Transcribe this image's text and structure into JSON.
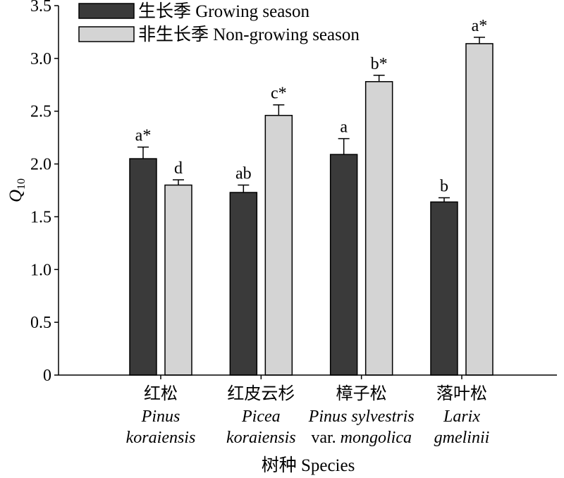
{
  "chart_data": {
    "type": "bar",
    "categories": [
      {
        "cn": "红松",
        "line2": [
          {
            "text": "Pinus",
            "italic": true
          }
        ],
        "line3": [
          {
            "text": "koraiensis",
            "italic": true
          }
        ]
      },
      {
        "cn": "红皮云杉",
        "line2": [
          {
            "text": "Picea",
            "italic": true
          }
        ],
        "line3": [
          {
            "text": "koraiensis",
            "italic": true
          }
        ]
      },
      {
        "cn": "樟子松",
        "line2": [
          {
            "text": "Pinus sylvestris",
            "italic": true
          }
        ],
        "line3": [
          {
            "text": "var.",
            "italic": false
          },
          {
            "text": "mongolica",
            "italic": true
          }
        ]
      },
      {
        "cn": "落叶松",
        "line2": [
          {
            "text": "Larix",
            "italic": true
          }
        ],
        "line3": [
          {
            "text": "gmelinii",
            "italic": true
          }
        ]
      }
    ],
    "series": [
      {
        "name": "生长季 Growing season",
        "color": "#3a3a3a",
        "values": [
          2.05,
          1.73,
          2.09,
          1.64
        ],
        "errors": [
          0.11,
          0.07,
          0.15,
          0.04
        ],
        "sig_labels": [
          "a*",
          "ab",
          "a",
          "b"
        ]
      },
      {
        "name": "非生长季  Non-growing season",
        "color": "#d4d4d4",
        "values": [
          1.8,
          2.46,
          2.78,
          3.14
        ],
        "errors": [
          0.05,
          0.1,
          0.06,
          0.06
        ],
        "sig_labels": [
          "d",
          "c*",
          "b*",
          "a*"
        ]
      }
    ],
    "xlabel": "树种 Species",
    "ylabel": {
      "symbol": "Q",
      "subscript": "10"
    },
    "ylim": [
      0,
      3.5
    ],
    "yticks": [
      0,
      0.5,
      1.0,
      1.5,
      2.0,
      2.5,
      3.0,
      3.5
    ],
    "ytick_labels": [
      "0",
      "0.5",
      "1.0",
      "1.5",
      "2.0",
      "2.5",
      "3.0",
      "3.5"
    ],
    "grid": false,
    "legend_position": "top-left"
  }
}
